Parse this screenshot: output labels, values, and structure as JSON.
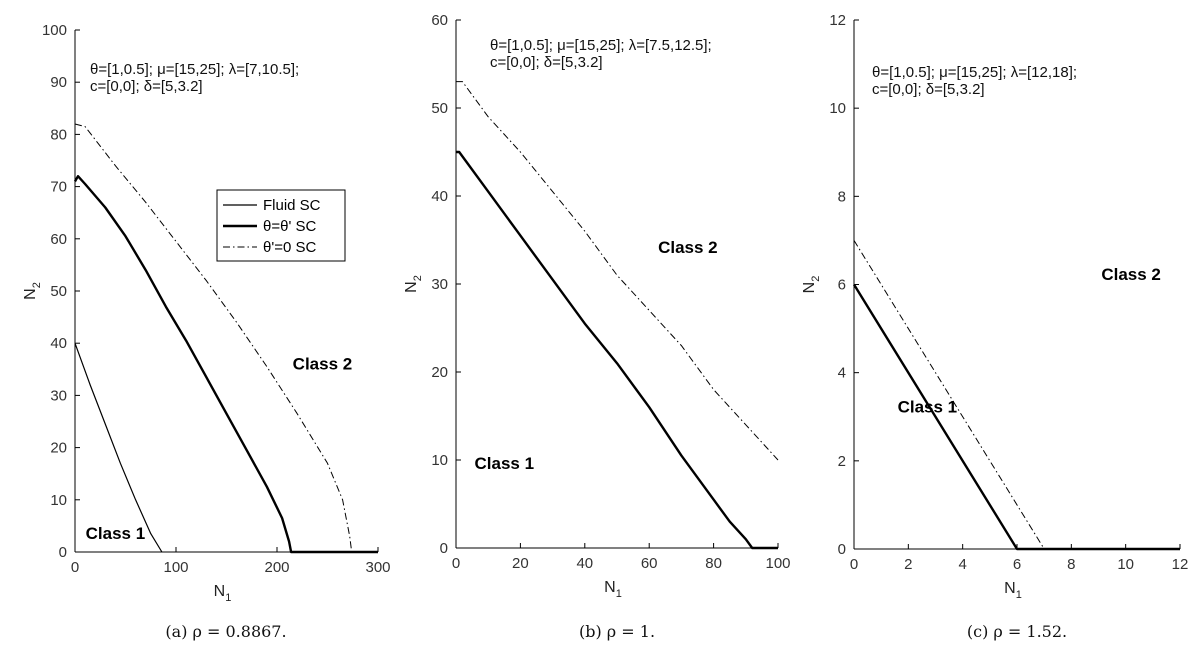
{
  "chart_data": [
    {
      "type": "line",
      "caption": "(a) ρ = 0.8867.",
      "xlabel": "N",
      "xlabel_sub": "1",
      "ylabel": "N",
      "ylabel_sub": "2",
      "xlim": [
        0,
        300
      ],
      "ylim": [
        0,
        100
      ],
      "xticks": [
        0,
        100,
        200,
        300
      ],
      "yticks": [
        0,
        10,
        20,
        30,
        40,
        50,
        60,
        70,
        80,
        90,
        100
      ],
      "annotation": [
        "θ=[1,0.5]; μ=[15,25]; λ=[7,10.5];",
        "c=[0,0]; δ=[5,3.2]"
      ],
      "region_labels": [
        {
          "text": "Class 1",
          "x": 40,
          "y": 2.5
        },
        {
          "text": "Class 2",
          "x": 245,
          "y": 35
        }
      ],
      "legend": {
        "placement": "inside-upper-middle",
        "entries": [
          "Fluid SC",
          "θ=θ' SC",
          "θ'=0 SC"
        ]
      },
      "series": [
        {
          "name": "Fluid SC",
          "style": "solid-thin",
          "x": [
            0,
            15,
            30,
            45,
            60,
            75,
            86
          ],
          "y": [
            40,
            32,
            24.5,
            17,
            10,
            3.5,
            0
          ]
        },
        {
          "name": "θ=θ' SC",
          "style": "solid-thick",
          "x": [
            0,
            3,
            10,
            30,
            50,
            70,
            90,
            110,
            130,
            150,
            170,
            190,
            205,
            212,
            214,
            300
          ],
          "y": [
            71,
            72,
            70.5,
            66,
            60.5,
            54,
            47,
            40.5,
            33.5,
            26.5,
            19.5,
            12.5,
            6.5,
            2,
            0,
            0
          ]
        },
        {
          "name": "θ'=0 SC",
          "style": "dashdot",
          "x": [
            0,
            10,
            20,
            40,
            70,
            100,
            130,
            160,
            190,
            220,
            250,
            265,
            272,
            274,
            300
          ],
          "y": [
            82,
            81.5,
            79,
            74,
            67,
            59.5,
            52,
            44,
            35.5,
            26.5,
            17,
            10,
            3,
            0,
            0
          ]
        }
      ]
    },
    {
      "type": "line",
      "caption": "(b) ρ = 1.",
      "xlabel": "N",
      "xlabel_sub": "1",
      "ylabel": "N",
      "ylabel_sub": "2",
      "xlim": [
        0,
        100
      ],
      "ylim": [
        0,
        60
      ],
      "xticks": [
        0,
        20,
        40,
        60,
        80,
        100
      ],
      "yticks": [
        0,
        10,
        20,
        30,
        40,
        50,
        60
      ],
      "annotation": [
        "θ=[1,0.5]; μ=[15,25]; λ=[7.5,12.5];",
        "c=[0,0]; δ=[5,3.2]"
      ],
      "region_labels": [
        {
          "text": "Class 1",
          "x": 15,
          "y": 9
        },
        {
          "text": "Class 2",
          "x": 72,
          "y": 33.5
        }
      ],
      "series": [
        {
          "name": "θ=θ' SC",
          "style": "solid-thick",
          "x": [
            0,
            1,
            10,
            20,
            30,
            40,
            50,
            60,
            70,
            80,
            85,
            90,
            92,
            100
          ],
          "y": [
            45,
            45,
            40.5,
            35.5,
            30.5,
            25.5,
            21,
            16,
            10.5,
            5.5,
            3,
            1,
            0,
            0
          ]
        },
        {
          "name": "θ'=0 SC",
          "style": "dashdot",
          "x": [
            0,
            2,
            10,
            20,
            30,
            40,
            50,
            60,
            70,
            80,
            90,
            100
          ],
          "y": [
            53,
            53,
            49,
            45,
            40.5,
            36,
            31,
            27,
            23,
            18,
            14,
            10
          ]
        }
      ]
    },
    {
      "type": "line",
      "caption": "(c) ρ = 1.52.",
      "xlabel": "N",
      "xlabel_sub": "1",
      "ylabel": "N",
      "ylabel_sub": "2",
      "xlim": [
        0,
        12
      ],
      "ylim": [
        0,
        12
      ],
      "xticks": [
        0,
        2,
        4,
        6,
        8,
        10,
        12
      ],
      "yticks": [
        0,
        2,
        4,
        6,
        8,
        10,
        12
      ],
      "annotation": [
        "θ=[1,0.5]; μ=[15,25]; λ=[12,18];",
        "c=[0,0]; δ=[5,3.2]"
      ],
      "region_labels": [
        {
          "text": "Class 1",
          "x": 2.7,
          "y": 3.1
        },
        {
          "text": "Class 2",
          "x": 10.2,
          "y": 6.1
        }
      ],
      "series": [
        {
          "name": "θ=θ' SC",
          "style": "solid-thick",
          "x": [
            0,
            6,
            12
          ],
          "y": [
            6,
            0,
            0
          ]
        },
        {
          "name": "θ'=0 SC",
          "style": "dashdot",
          "x": [
            0,
            7,
            12
          ],
          "y": [
            7,
            0,
            0
          ]
        }
      ]
    }
  ]
}
